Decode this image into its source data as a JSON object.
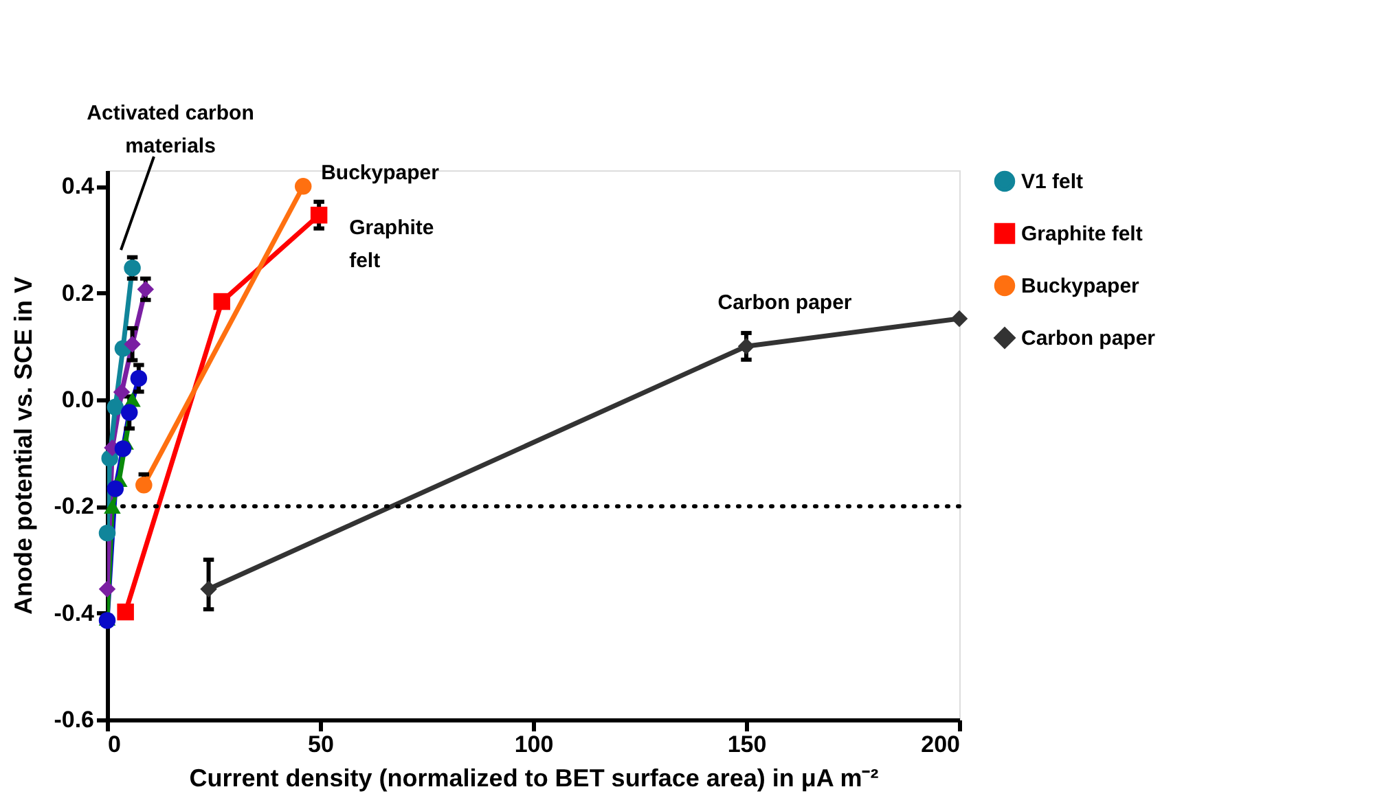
{
  "chart_data": {
    "type": "line",
    "xlabel": "Current density (normalized to BET surface area) in μA m⁻²",
    "ylabel": "Anode potential vs. SCE in V",
    "xlim": [
      0,
      200
    ],
    "xticks": [
      0,
      50,
      100,
      150,
      200
    ],
    "ylim": [
      -0.6,
      0.43
    ],
    "yticks": [
      0.4,
      0.2,
      {
        "value": 0,
        "label": "0.0"
      },
      -0.2,
      -0.4,
      -0.6
    ],
    "grid": false,
    "legend": "right",
    "line_style": "solid",
    "series": [
      {
        "color": "#0a0ac8",
        "marker": "circle",
        "x": [
          0,
          1.9,
          3.7,
          5.2,
          7.4
        ],
        "values": [
          -0.414,
          -0.167,
          -0.092,
          -0.024,
          0.04
        ],
        "errors": [
          null,
          null,
          null,
          0.03,
          0.025
        ]
      },
      {
        "color": "#0a8a0a",
        "marker": "triangle",
        "x": [
          0,
          1.2,
          2.8,
          4.3,
          5.9
        ],
        "values": [
          -0.41,
          -0.2,
          -0.15,
          -0.08,
          0.0
        ],
        "errors": [
          null,
          null,
          null,
          null,
          null
        ]
      },
      {
        "color": "#7a1fa2",
        "marker": "diamond",
        "x": [
          0,
          1.2,
          3.4,
          5.9,
          9
        ],
        "values": [
          -0.355,
          -0.09,
          0.014,
          0.104,
          0.207
        ],
        "errors": [
          null,
          null,
          null,
          0.03,
          0.02
        ]
      },
      {
        "name": "V1 felt",
        "color": "#10859a",
        "marker": "circle",
        "x": [
          0,
          0.6,
          1.9,
          3.7,
          5.9
        ],
        "values": [
          -0.25,
          -0.11,
          -0.014,
          0.096,
          0.247
        ],
        "errors": [
          null,
          null,
          null,
          null,
          0.02
        ]
      },
      {
        "name": "Graphite felt",
        "color": "#ff0000",
        "marker": "square",
        "x": [
          4.3,
          26.9,
          49.7
        ],
        "values": [
          -0.398,
          0.184,
          0.346
        ],
        "errors": [
          null,
          null,
          0.025
        ]
      },
      {
        "name": "Buckypaper",
        "color": "#ff7010",
        "marker": "circle",
        "x": [
          8.6,
          46
        ],
        "values": [
          -0.16,
          0.4
        ],
        "errors": [
          [
            -0.16,
            -0.14
          ],
          null
        ]
      },
      {
        "name": "Carbon paper",
        "color": "#333333",
        "marker": "diamond",
        "x": [
          23.8,
          150,
          200
        ],
        "values": [
          -0.355,
          0.1,
          0.152
        ],
        "errors": [
          [
            -0.393,
            -0.3
          ],
          0.025,
          null
        ]
      }
    ],
    "ref_lines": [
      {
        "axis": "y",
        "value": -0.2,
        "color": "#000000",
        "line_style": "dotted"
      }
    ],
    "annotations": [
      "Activated carbon\nmaterials",
      {
        "text": "Buckypaper",
        "x": 46,
        "y": 0.4
      },
      {
        "text": "Graphite\nfelt",
        "x": 49.7,
        "y": 0.346
      },
      {
        "text": "Carbon paper",
        "x": 150,
        "y": 0.1
      }
    ]
  }
}
